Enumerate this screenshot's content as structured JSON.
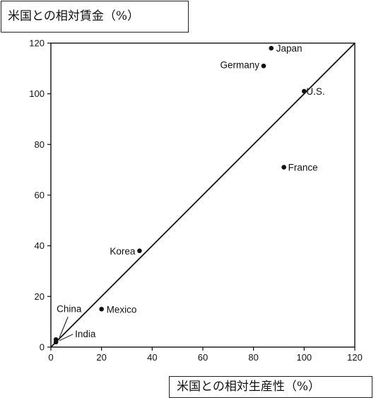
{
  "chart_data": {
    "type": "scatter",
    "xlabel": "米国との相対生産性（%）",
    "ylabel": "米国との相対賃金（%）",
    "xlim": [
      0,
      120
    ],
    "ylim": [
      0,
      120
    ],
    "xticks": [
      "0",
      "20",
      "40",
      "60",
      "80",
      "100",
      "120"
    ],
    "yticks": [
      "0",
      "20",
      "40",
      "60",
      "80",
      "100",
      "120"
    ],
    "grid": false,
    "reference_line": {
      "from": [
        0,
        0
      ],
      "to": [
        120,
        120
      ]
    },
    "points": [
      {
        "name": "Japan",
        "x": 87,
        "y": 118
      },
      {
        "name": "Germany",
        "x": 84,
        "y": 111
      },
      {
        "name": "U.S.",
        "x": 100,
        "y": 101
      },
      {
        "name": "France",
        "x": 92,
        "y": 71
      },
      {
        "name": "Korea",
        "x": 35,
        "y": 38
      },
      {
        "name": "Mexico",
        "x": 20,
        "y": 15
      },
      {
        "name": "China",
        "x": 2,
        "y": 3
      },
      {
        "name": "India",
        "x": 2,
        "y": 2
      }
    ]
  }
}
